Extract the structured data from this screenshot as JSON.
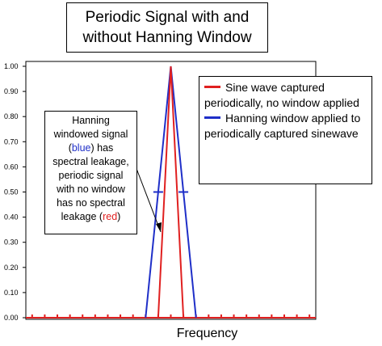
{
  "chart_data": {
    "type": "line",
    "title_lines": [
      "Periodic Signal with and",
      "without Hanning Window"
    ],
    "xlabel": "Frequency",
    "ylabel": "",
    "ylim": [
      0,
      1
    ],
    "yticks": [
      "0.00",
      "0.10",
      "0.20",
      "0.30",
      "0.40",
      "0.50",
      "0.60",
      "0.70",
      "0.80",
      "0.90",
      "1.00"
    ],
    "grid": false,
    "legend_position": "top-right",
    "bins": 23,
    "peak_bin": 11,
    "series": [
      {
        "name": "Sine wave captured periodically, no window applied",
        "color": "#e02020",
        "points": [
          [
            10,
            0
          ],
          [
            11,
            1.0
          ],
          [
            12,
            0
          ]
        ]
      },
      {
        "name": "Hanning window applied to periodically captured sinewave",
        "color": "#1f2fc8",
        "points": [
          [
            9,
            0
          ],
          [
            10,
            0.5
          ],
          [
            11,
            1.0
          ],
          [
            12,
            0.5
          ],
          [
            13,
            0
          ]
        ]
      }
    ],
    "annotation": {
      "lines": [
        [
          {
            "text": "Hanning"
          }
        ],
        [
          {
            "text": "windowed signal"
          }
        ],
        [
          {
            "text": "("
          },
          {
            "text": "blue",
            "color": "blue"
          },
          {
            "text": ") has"
          }
        ],
        [
          {
            "text": "spectral leakage,"
          }
        ],
        [
          {
            "text": "periodic signal"
          }
        ],
        [
          {
            "text": "with no window"
          }
        ],
        [
          {
            "text": "has no spectral"
          }
        ],
        [
          {
            "text": "leakage ("
          },
          {
            "text": "red",
            "color": "red"
          },
          {
            "text": ")"
          }
        ]
      ]
    }
  }
}
